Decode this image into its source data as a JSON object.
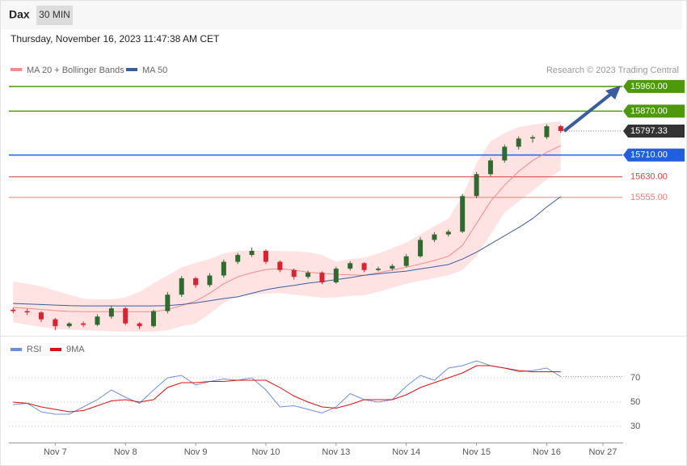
{
  "header": {
    "title": "Dax",
    "timeframe": "30 MIN",
    "timestamp": "Thursday, November 16, 2023 11:47:38 AM CET",
    "credit": "Research © 2023 Trading Central"
  },
  "chart_data": [
    {
      "type": "candlestick",
      "xlim": [
        -0.3,
        43.5
      ],
      "xticks": [
        {
          "value": 3,
          "label": "Nov 7"
        },
        {
          "value": 8,
          "label": "Nov 8"
        },
        {
          "value": 13,
          "label": "Nov 9"
        },
        {
          "value": 18,
          "label": "Nov 10"
        },
        {
          "value": 23,
          "label": "Nov 13"
        },
        {
          "value": 28,
          "label": "Nov 14"
        },
        {
          "value": 33,
          "label": "Nov 15"
        },
        {
          "value": 38,
          "label": "Nov 16"
        },
        {
          "value": 42,
          "label": "Nov 27"
        }
      ],
      "ylim": [
        15050,
        16010
      ],
      "up_color": "#2e6b2e",
      "down_color": "#d9232e",
      "open": [
        15145,
        15140,
        15135,
        15110,
        15085,
        15095,
        15090,
        15120,
        15150,
        15095,
        15085,
        15140,
        15200,
        15260,
        15235,
        15270,
        15320,
        15345,
        15360,
        15320,
        15290,
        15265,
        15280,
        15245,
        15295,
        15315,
        15290,
        15295,
        15305,
        15340,
        15400,
        15420,
        15430,
        15560,
        15640,
        15690,
        15740,
        15770,
        15775,
        15815
      ],
      "high": [
        15152,
        15148,
        15140,
        15115,
        15100,
        15102,
        15128,
        15160,
        15155,
        15100,
        15145,
        15210,
        15268,
        15265,
        15278,
        15328,
        15352,
        15372,
        15365,
        15325,
        15295,
        15288,
        15285,
        15302,
        15322,
        15318,
        15302,
        15312,
        15348,
        15410,
        15428,
        15438,
        15568,
        15648,
        15698,
        15748,
        15778,
        15782,
        15822,
        15820
      ],
      "low": [
        15132,
        15125,
        15100,
        15070,
        15078,
        15082,
        15085,
        15112,
        15088,
        15075,
        15080,
        15132,
        15192,
        15225,
        15228,
        15262,
        15312,
        15338,
        15312,
        15282,
        15255,
        15258,
        15238,
        15240,
        15288,
        15282,
        15285,
        15288,
        15300,
        15335,
        15392,
        15412,
        15425,
        15552,
        15632,
        15682,
        15730,
        15755,
        15768,
        15790
      ],
      "close": [
        15140,
        15135,
        15110,
        15085,
        15095,
        15090,
        15120,
        15150,
        15095,
        15085,
        15140,
        15200,
        15260,
        15235,
        15270,
        15320,
        15345,
        15360,
        15320,
        15290,
        15265,
        15280,
        15245,
        15295,
        15315,
        15290,
        15295,
        15305,
        15340,
        15400,
        15420,
        15430,
        15560,
        15640,
        15690,
        15740,
        15770,
        15775,
        15815,
        15797.33
      ],
      "bands": {
        "color": "#ffe3e3",
        "upper": [
          15248,
          15240,
          15230,
          15215,
          15200,
          15185,
          15183,
          15183,
          15190,
          15210,
          15242,
          15270,
          15300,
          15316,
          15330,
          15350,
          15360,
          15362,
          15360,
          15360,
          15358,
          15355,
          15345,
          15320,
          15330,
          15335,
          15350,
          15370,
          15390,
          15420,
          15450,
          15478,
          15560,
          15680,
          15760,
          15790,
          15812,
          15820,
          15828,
          15833
        ],
        "lower": [
          15100,
          15090,
          15082,
          15075,
          15072,
          15070,
          15068,
          15066,
          15065,
          15064,
          15064,
          15070,
          15085,
          15094,
          15130,
          15170,
          15195,
          15200,
          15204,
          15206,
          15200,
          15195,
          15188,
          15190,
          15195,
          15198,
          15210,
          15225,
          15240,
          15250,
          15260,
          15271,
          15290,
          15340,
          15420,
          15500,
          15540,
          15580,
          15620,
          15655
        ]
      },
      "series": [
        {
          "name": "MA 20 + Bollinger Bands",
          "color": "#f28b8b",
          "values": [
            15153,
            15150,
            15146,
            15142,
            15139,
            15138,
            15138,
            15138,
            15138,
            15138,
            15138,
            15145,
            15160,
            15177,
            15205,
            15240,
            15265,
            15280,
            15292,
            15295,
            15290,
            15282,
            15278,
            15274,
            15272,
            15271,
            15280,
            15290,
            15300,
            15312,
            15325,
            15340,
            15380,
            15460,
            15540,
            15600,
            15650,
            15690,
            15720,
            15744
          ]
        },
        {
          "name": "MA 50",
          "color": "#3a5da0",
          "values": [
            15168,
            15166,
            15164,
            15162,
            15160,
            15159,
            15159,
            15159,
            15159,
            15159,
            15159,
            15160,
            15164,
            15170,
            15178,
            15186,
            15192,
            15205,
            15218,
            15227,
            15234,
            15242,
            15248,
            15255,
            15262,
            15271,
            15276,
            15281,
            15286,
            15294,
            15302,
            15310,
            15330,
            15355,
            15385,
            15415,
            15445,
            15478,
            15520,
            15558
          ]
        }
      ],
      "levels": [
        {
          "value": 15960,
          "label": "15960.00",
          "color": "#4c9a0a",
          "tag": true
        },
        {
          "value": 15870,
          "label": "15870.00",
          "color": "#4c9a0a",
          "tag": true
        },
        {
          "value": 15710,
          "label": "15710.00",
          "color": "#1f5fe0",
          "tag": true
        },
        {
          "value": 15630,
          "label": "15630.00",
          "color": "#e33b3b",
          "tag": false
        },
        {
          "value": 15555,
          "label": "15555.00",
          "color": "#f07a7a",
          "tag": false
        }
      ],
      "last_color": "#333333"
    },
    {
      "type": "line",
      "ylim": [
        18,
        88
      ],
      "yticks": [
        30,
        50,
        70
      ],
      "grid": true,
      "series": [
        {
          "name": "RSI",
          "color": "#6f8fdc",
          "values": [
            48,
            49,
            42,
            40,
            40,
            46,
            52,
            60,
            54,
            49,
            60,
            70,
            72,
            64,
            67,
            69,
            68,
            70,
            60,
            46,
            47,
            44,
            41,
            46,
            57,
            52,
            50,
            52,
            63,
            72,
            68,
            78,
            80,
            84,
            80,
            78,
            75,
            76,
            78,
            71
          ]
        },
        {
          "name": "9MA",
          "color": "#e01010",
          "values": [
            50,
            49,
            46,
            44,
            42,
            43,
            47,
            51,
            52,
            50,
            52,
            62,
            66,
            66,
            67,
            67,
            68,
            68,
            68,
            62,
            55,
            50,
            46,
            45,
            48,
            52,
            52,
            52,
            56,
            62,
            66,
            70,
            74,
            80,
            80,
            78,
            76,
            75,
            75,
            75
          ]
        }
      ]
    }
  ]
}
